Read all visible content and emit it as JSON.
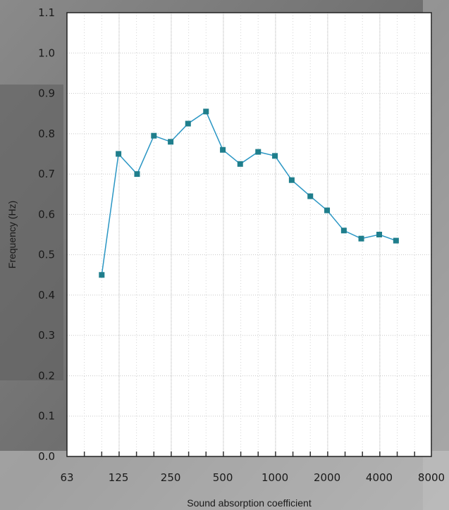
{
  "chart_data": {
    "type": "line",
    "title": "",
    "xlabel": "Sound absorption coefficient",
    "ylabel": "Frequency (Hz)",
    "x_scale": "log",
    "x_tick_labels": [
      "63",
      "125",
      "250",
      "500",
      "1000",
      "2000",
      "4000",
      "8000"
    ],
    "y_tick_labels": [
      "0.0",
      "0.1",
      "0.2",
      "0.3",
      "0.4",
      "0.5",
      "0.6",
      "0.7",
      "0.8",
      "0.9",
      "1.0",
      "1.1"
    ],
    "xlim": [
      63,
      8000
    ],
    "ylim": [
      0,
      1.1
    ],
    "grid": true,
    "colors": {
      "line": "#2a96c4",
      "marker": "#1f7e8c",
      "plot_bg": "#ffffff",
      "grid": "#c8c8c8",
      "frame": "#222222"
    },
    "series": [
      {
        "x": [
          100,
          125,
          160,
          200,
          250,
          315,
          400,
          500,
          630,
          800,
          1000,
          1250,
          1600,
          2000,
          2500,
          3150,
          4000,
          5000
        ],
        "y": [
          0.45,
          0.75,
          0.7,
          0.795,
          0.78,
          0.825,
          0.855,
          0.76,
          0.725,
          0.755,
          0.745,
          0.685,
          0.645,
          0.61,
          0.56,
          0.54,
          0.55,
          0.535
        ]
      }
    ]
  }
}
